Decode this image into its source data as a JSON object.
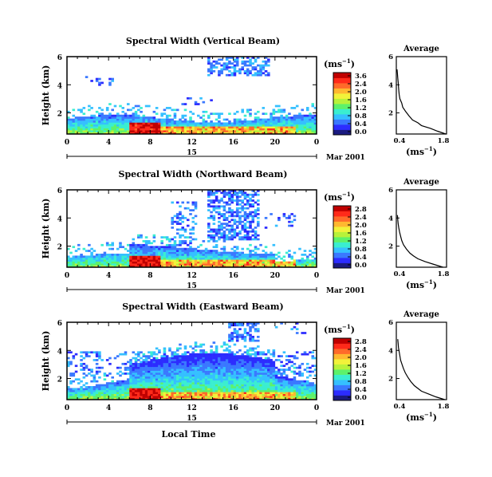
{
  "common": {
    "y_axis_label": "Height (km)",
    "x_tick_labels": [
      "0",
      "4",
      "8",
      "12",
      "16",
      "20",
      "0"
    ],
    "colorbar_unit": "(ms",
    "colorbar_unit_sup": "−1",
    "average_title": "Average",
    "average_x_ticks": [
      "0.4",
      "1.8"
    ],
    "average_x_unit": "(ms",
    "average_x_unit_sup": "−1",
    "average_y_ticks": [
      "6",
      "4",
      "2"
    ],
    "x_axis_title": "Local Time",
    "colors": [
      "#1a1a80",
      "#2c2cff",
      "#3a78ff",
      "#35c0ff",
      "#3aeed0",
      "#5df26a",
      "#b8f23a",
      "#f2f23a",
      "#ffb830",
      "#ff6a2a",
      "#ff2a1a",
      "#c00000"
    ]
  },
  "chart_data": [
    {
      "type": "heatmap",
      "title": "Spectral Width (Vertical Beam)",
      "ylabel": "Height (km)",
      "xlabel": "",
      "y_ticks": [
        "6",
        "4",
        "2"
      ],
      "x_ticks": [
        "0",
        "4",
        "8",
        "12",
        "16",
        "20",
        "0"
      ],
      "xlim": [
        0,
        24
      ],
      "ylim": [
        0.5,
        6
      ],
      "day_label": "15",
      "date_label": "Mar 2001",
      "colorbar_ticks": [
        "3.6",
        "2.4",
        "2.0",
        "1.6",
        "1.2",
        "0.8",
        "0.4",
        "0.0"
      ],
      "colorbar_range": [
        0,
        3.6
      ],
      "average_profile": {
        "title": "Average",
        "xlim": [
          0.4,
          1.8
        ],
        "height_km": [
          0.5,
          0.7,
          0.9,
          1.1,
          1.3,
          1.5,
          1.8,
          2.1,
          2.4,
          2.7,
          3.0,
          3.3,
          3.6,
          3.9,
          4.2,
          4.5,
          4.8,
          5.1
        ],
        "width": [
          1.78,
          1.55,
          1.35,
          1.1,
          1.0,
          0.85,
          0.75,
          0.66,
          0.58,
          0.55,
          0.5,
          0.48,
          0.47,
          0.46,
          0.45,
          0.44,
          0.43,
          0.42
        ]
      }
    },
    {
      "type": "heatmap",
      "title": "Spectral Width (Northward Beam)",
      "ylabel": "Height (km)",
      "xlabel": "",
      "y_ticks": [
        "6",
        "4",
        "2"
      ],
      "x_ticks": [
        "0",
        "4",
        "8",
        "12",
        "16",
        "20",
        "0"
      ],
      "xlim": [
        0,
        24
      ],
      "ylim": [
        0.5,
        6
      ],
      "day_label": "15",
      "date_label": "Mar 2001",
      "colorbar_ticks": [
        "2.8",
        "2.4",
        "2.0",
        "1.6",
        "1.2",
        "0.8",
        "0.4",
        "0.0"
      ],
      "colorbar_range": [
        0,
        2.8
      ],
      "average_profile": {
        "title": "Average",
        "xlim": [
          0.4,
          1.8
        ],
        "height_km": [
          0.5,
          0.7,
          0.9,
          1.1,
          1.3,
          1.5,
          1.8,
          2.1,
          2.4,
          2.7,
          3.0,
          3.3,
          3.6,
          3.9,
          4.2
        ],
        "width": [
          1.7,
          1.45,
          1.2,
          1.0,
          0.88,
          0.78,
          0.68,
          0.6,
          0.55,
          0.52,
          0.49,
          0.47,
          0.45,
          0.44,
          0.43
        ]
      }
    },
    {
      "type": "heatmap",
      "title": "Spectral Width (Eastward Beam)",
      "ylabel": "Height (km)",
      "xlabel": "Local Time",
      "y_ticks": [
        "6",
        "4",
        "2"
      ],
      "x_ticks": [
        "0",
        "4",
        "8",
        "12",
        "16",
        "20",
        "0"
      ],
      "xlim": [
        0,
        24
      ],
      "ylim": [
        0.5,
        6
      ],
      "day_label": "15",
      "date_label": "Mar 2001",
      "colorbar_ticks": [
        "2.8",
        "2.4",
        "2.0",
        "1.6",
        "1.2",
        "0.8",
        "0.4",
        "0.0"
      ],
      "colorbar_range": [
        0,
        2.8
      ],
      "average_profile": {
        "title": "Average",
        "xlim": [
          0.4,
          1.8
        ],
        "height_km": [
          0.5,
          0.7,
          0.9,
          1.1,
          1.3,
          1.5,
          1.8,
          2.1,
          2.4,
          2.7,
          3.0,
          3.3,
          3.6,
          3.9,
          4.2,
          4.5,
          4.8
        ],
        "width": [
          1.75,
          1.5,
          1.3,
          1.1,
          1.0,
          0.9,
          0.8,
          0.72,
          0.65,
          0.6,
          0.56,
          0.52,
          0.5,
          0.48,
          0.46,
          0.45,
          0.44
        ]
      }
    }
  ]
}
